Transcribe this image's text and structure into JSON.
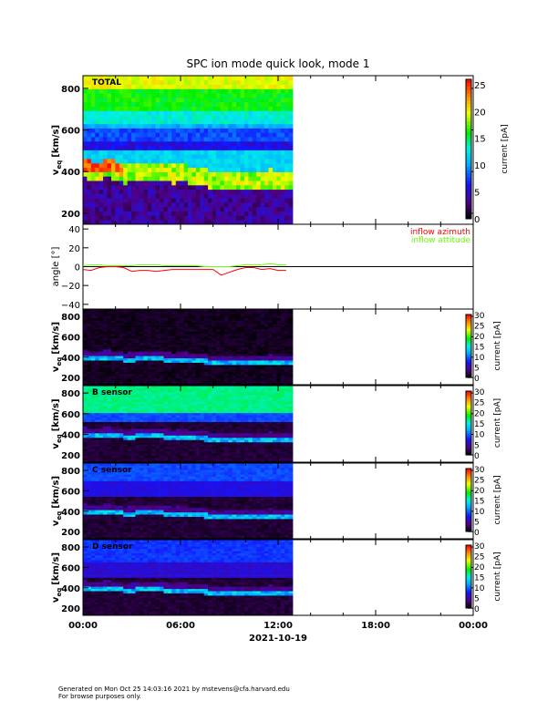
{
  "chart_data": {
    "type": "heatmap",
    "title": "SPC ion mode quick look, mode 1",
    "date_label": "2021-10-19",
    "x_ticks": [
      "00:00",
      "06:00",
      "12:00",
      "18:00",
      "00:00"
    ],
    "x_range_hours": [
      0,
      24
    ],
    "data_end_hours": 12.9,
    "time_hours": [
      0,
      0.5,
      1,
      1.5,
      2,
      2.5,
      3,
      3.5,
      4,
      4.5,
      5,
      5.5,
      6,
      6.5,
      7,
      7.5,
      8,
      8.5,
      9,
      9.5,
      10,
      10.5,
      11,
      11.5,
      12,
      12.5
    ],
    "peak_velocity_kms": [
      400,
      395,
      395,
      400,
      395,
      375,
      380,
      385,
      390,
      390,
      380,
      375,
      380,
      375,
      370,
      360,
      350,
      345,
      345,
      350,
      350,
      345,
      350,
      355,
      345,
      350
    ],
    "panels": [
      {
        "label": "TOTAL",
        "ylabel": "v",
        "ylabel_sub": "eq",
        "ylabel_unit": "[km/s]",
        "y_ticks": [
          "800",
          "600",
          "400",
          "200"
        ],
        "ylim": [
          147,
          861
        ],
        "colorbar_label": "current [pA]",
        "colorbar_ticks": [
          "0",
          "5",
          "10",
          "15",
          "20",
          "25"
        ],
        "clim": [
          0,
          26
        ]
      },
      {
        "label": "",
        "ylabel": "v",
        "ylabel_sub": "eq",
        "ylabel_unit": "[km/s]",
        "y_ticks": [
          "800",
          "600",
          "400",
          "200"
        ],
        "ylim": [
          130,
          872
        ],
        "colorbar_label": "current [pA]",
        "colorbar_ticks": [
          "0",
          "5",
          "10",
          "15",
          "20",
          "25",
          "30"
        ],
        "clim": [
          0,
          30
        ]
      },
      {
        "label": "B sensor",
        "ylabel": "v",
        "ylabel_sub": "eq",
        "ylabel_unit": "[km/s]",
        "y_ticks": [
          "800",
          "600",
          "400",
          "200"
        ],
        "ylim": [
          130,
          872
        ],
        "colorbar_label": "current [pA]",
        "colorbar_ticks": [
          "0",
          "5",
          "10",
          "15",
          "20",
          "25",
          "30"
        ],
        "clim": [
          0,
          30
        ]
      },
      {
        "label": "C sensor",
        "ylabel": "v",
        "ylabel_sub": "eq",
        "ylabel_unit": "[km/s]",
        "y_ticks": [
          "800",
          "600",
          "400",
          "200"
        ],
        "ylim": [
          130,
          872
        ],
        "colorbar_label": "current [pA]",
        "colorbar_ticks": [
          "0",
          "5",
          "10",
          "15",
          "20",
          "25",
          "30"
        ],
        "clim": [
          0,
          30
        ]
      },
      {
        "label": "D sensor",
        "ylabel": "v",
        "ylabel_sub": "eq",
        "ylabel_unit": "[km/s]",
        "y_ticks": [
          "800",
          "600",
          "400",
          "200"
        ],
        "ylim": [
          130,
          872
        ],
        "colorbar_label": "current [pA]",
        "colorbar_ticks": [
          "0",
          "5",
          "10",
          "15",
          "20",
          "25",
          "30"
        ],
        "clim": [
          0,
          30
        ]
      }
    ],
    "angle_panel": {
      "ylabel": "angle [°]",
      "y_ticks": [
        "40",
        "20",
        "0",
        "−20",
        "−40"
      ],
      "ylim": [
        -45,
        45
      ],
      "series": [
        {
          "name": "inflow azimuth",
          "color": "#ff0000",
          "values": [
            -3,
            -4,
            -1,
            0,
            0,
            -1,
            -5,
            -4,
            -4,
            -5,
            -4,
            -3,
            -3,
            -3,
            -3,
            -3,
            -3,
            -9,
            -6,
            -3,
            -1,
            -1,
            -3,
            -2,
            -4,
            -4
          ]
        },
        {
          "name": "inflow attitude",
          "color": "#66ff00",
          "values": [
            1,
            2,
            2,
            1,
            1,
            1,
            1,
            2,
            2,
            2,
            1,
            1,
            1,
            1,
            1,
            0,
            0,
            0,
            0,
            1,
            2,
            2,
            2,
            3,
            2,
            2
          ]
        }
      ]
    }
  },
  "footer": {
    "line1": "Generated on Mon Oct 25 14:03:16 2021 by mstevens@cfa.harvard.edu",
    "line2": "For browse purposes only."
  }
}
